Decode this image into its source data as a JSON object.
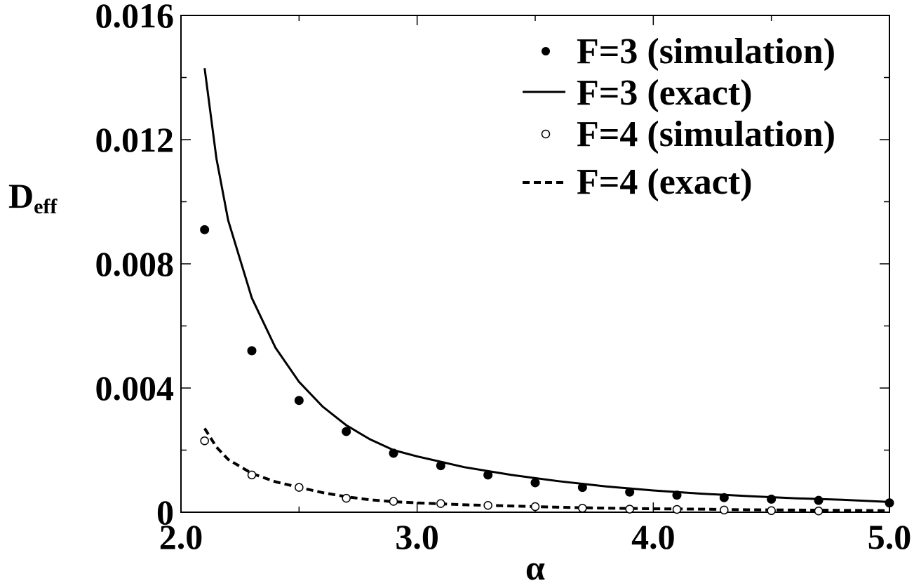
{
  "chart_data": {
    "type": "scatter",
    "title": "",
    "xlabel": "α",
    "ylabel": "D",
    "ylabel_sub": "eff",
    "xlim": [
      2.0,
      5.0
    ],
    "ylim": [
      0,
      0.016
    ],
    "x_ticks": [
      2.0,
      3.0,
      4.0,
      5.0
    ],
    "x_tick_labels": [
      "2.0",
      "3.0",
      "4.0",
      "5.0"
    ],
    "y_ticks": [
      0,
      0.004,
      0.008,
      0.012,
      0.016
    ],
    "y_tick_labels": [
      "0",
      "0.004",
      "0.008",
      "0.012",
      "0.016"
    ],
    "grid": false,
    "legend_position": "top-right",
    "series": [
      {
        "name": "F=3 (simulation)",
        "style": "filled-marker",
        "x": [
          2.1,
          2.3,
          2.5,
          2.7,
          2.9,
          3.1,
          3.3,
          3.5,
          3.7,
          3.9,
          4.1,
          4.3,
          4.5,
          4.7,
          5.0
        ],
        "y": [
          0.0091,
          0.0052,
          0.0036,
          0.0026,
          0.0019,
          0.0015,
          0.0012,
          0.00095,
          0.0008,
          0.00065,
          0.00055,
          0.00047,
          0.00042,
          0.00038,
          0.0003
        ]
      },
      {
        "name": "F=3 (exact)",
        "style": "solid-line",
        "x": [
          2.1,
          2.15,
          2.2,
          2.3,
          2.4,
          2.5,
          2.6,
          2.7,
          2.8,
          2.9,
          3.0,
          3.2,
          3.4,
          3.6,
          3.8,
          4.0,
          4.2,
          4.4,
          4.6,
          4.8,
          5.0
        ],
        "y": [
          0.0143,
          0.0114,
          0.0094,
          0.0069,
          0.0053,
          0.0042,
          0.0034,
          0.0028,
          0.00235,
          0.002,
          0.0018,
          0.00145,
          0.0012,
          0.001,
          0.00083,
          0.0007,
          0.0006,
          0.00052,
          0.00045,
          0.0004,
          0.00033
        ]
      },
      {
        "name": "F=4 (simulation)",
        "style": "open-marker",
        "x": [
          2.1,
          2.3,
          2.5,
          2.7,
          2.9,
          3.1,
          3.3,
          3.5,
          3.7,
          3.9,
          4.1,
          4.3,
          4.5,
          4.7
        ],
        "y": [
          0.0023,
          0.0012,
          0.0008,
          0.00045,
          0.00035,
          0.00028,
          0.00022,
          0.00018,
          0.00013,
          0.0001,
          9e-05,
          7e-05,
          5e-05,
          4e-05
        ]
      },
      {
        "name": "F=4 (exact)",
        "style": "dashed-line",
        "x": [
          2.1,
          2.15,
          2.2,
          2.3,
          2.4,
          2.5,
          2.6,
          2.7,
          2.8,
          2.9,
          3.0,
          3.2,
          3.4,
          3.6,
          3.8,
          4.0,
          4.2,
          4.4,
          4.6,
          4.8,
          5.0
        ],
        "y": [
          0.0027,
          0.0021,
          0.0017,
          0.00125,
          0.00098,
          0.0008,
          0.00063,
          0.0005,
          0.0004,
          0.00034,
          0.0003,
          0.00024,
          0.0002,
          0.00016,
          0.00013,
          0.00011,
          0.0001,
          8e-05,
          7e-05,
          6e-05,
          5e-05
        ]
      }
    ]
  }
}
